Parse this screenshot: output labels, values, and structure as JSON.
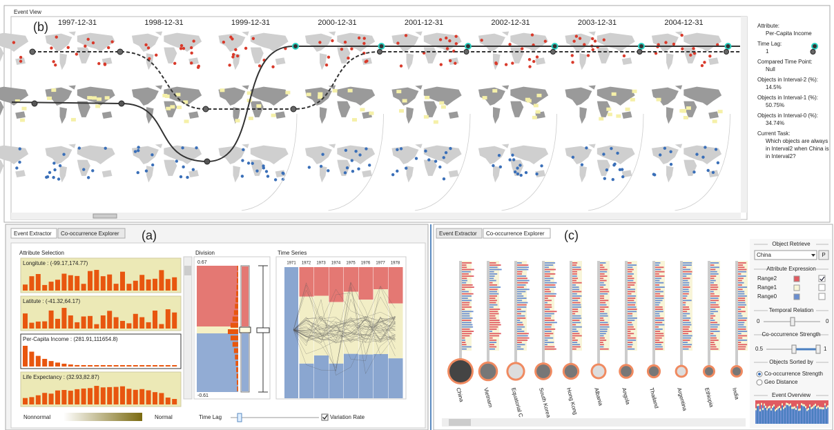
{
  "event_view": {
    "title": "Event View",
    "label": "(b)",
    "dates": [
      "1997-12-31",
      "1998-12-31",
      "1999-12-31",
      "2000-12-31",
      "2001-12-31",
      "2002-12-31",
      "2003-12-31",
      "2004-12-31"
    ],
    "details": [
      {
        "label": "Attribute:",
        "value": "Per-Capita Income"
      },
      {
        "label": "Time Lag:",
        "value": "1"
      },
      {
        "label": "Compared Time Point:",
        "value": "Null"
      },
      {
        "label": "Objects in Interval-2 (%):",
        "value": "14.5%"
      },
      {
        "label": "Objects in Interval-1 (%):",
        "value": "50.75%"
      },
      {
        "label": "Objects in Interval-0 (%):",
        "value": "34.74%"
      },
      {
        "label": "Current Task:",
        "value": "Which objects are always in Interval2 when China is in Interval2?"
      }
    ]
  },
  "event_extractor": {
    "tabs": [
      "Event Extractor",
      "Co-occurrence Explorer"
    ],
    "label": "(a)",
    "attribute_selection": "Attribute Selection",
    "attributes": [
      "Longitute : (-99.17,174.77)",
      "Latitute : (-41.32,64.17)",
      "Per-Capita Income : (281.91,111654.8)",
      "Life Expectancy : (32.93,82.87)"
    ],
    "division": {
      "title": "Division",
      "top": "0.67",
      "bottom": "-0.61"
    },
    "time_series": {
      "title": "Time Series",
      "years": [
        "1971",
        "1972",
        "1973",
        "1974",
        "1975",
        "1976",
        "1977",
        "1978"
      ]
    },
    "legend": {
      "low": "Nonnormal",
      "high": "Normal"
    },
    "time_lag": "Time Lag",
    "variation_rate": "Variation Rate"
  },
  "cooccurrence": {
    "tabs": [
      "Event Extractor",
      "Co-occurrence Explorer"
    ],
    "label": "(c)",
    "objects": [
      "China",
      "Vietnam",
      "Equatorial C",
      "South Korea",
      "Hong Kong",
      "Albania",
      "Angola",
      "Thailand",
      "Argentina",
      "Ethiopia",
      "India"
    ],
    "panel": {
      "object_retrieve": "Object Retrieve",
      "selected_object": "China",
      "p_button": "P",
      "attribute_expression": "Attribute Expression",
      "ranges": [
        "Range2",
        "Range1",
        "Range0"
      ],
      "temporal_relation": "Temporal Relation",
      "temporal_min": "0",
      "temporal_max": "0",
      "strength": "Co-occurrence Strength",
      "strength_min": "0.5",
      "strength_max": "1",
      "sorted_by": "Objects Sorted by",
      "sort_options": [
        "Co-occurrence Strength",
        "Geo Distance"
      ],
      "event_overview": "Event Overview"
    }
  }
}
